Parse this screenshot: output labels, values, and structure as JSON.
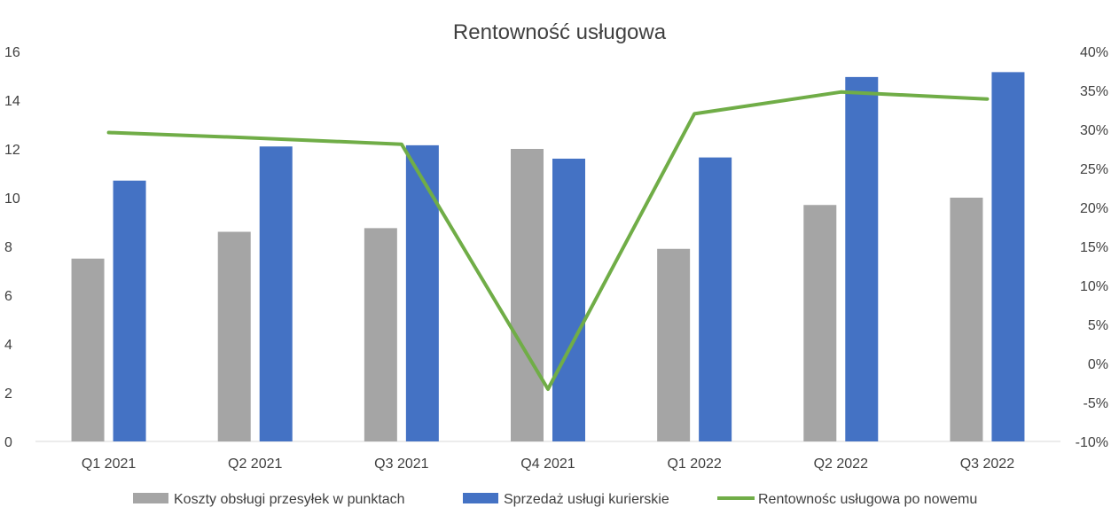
{
  "chart_data": {
    "type": "bar",
    "title": "Rentowność usługowa",
    "categories": [
      "Q1 2021",
      "Q2 2021",
      "Q3 2021",
      "Q4 2021",
      "Q1 2022",
      "Q2 2022",
      "Q3 2022"
    ],
    "y_left": {
      "min": 0,
      "max": 16,
      "ticks": [
        "0",
        "2",
        "4",
        "6",
        "8",
        "10",
        "12",
        "14",
        "16"
      ]
    },
    "y_right": {
      "min": -10,
      "max": 40,
      "ticks": [
        "-10%",
        "-5%",
        "0%",
        "5%",
        "10%",
        "15%",
        "20%",
        "25%",
        "30%",
        "35%",
        "40%"
      ]
    },
    "series": [
      {
        "name": "Koszty obsługi przesyłek w punktach",
        "type": "bar",
        "axis": "left",
        "color": "#A5A5A5",
        "values": [
          7.5,
          8.6,
          8.75,
          12.0,
          7.9,
          9.7,
          10.0
        ]
      },
      {
        "name": "Sprzedaż usługi kurierskie",
        "type": "bar",
        "axis": "left",
        "color": "#4472C4",
        "values": [
          10.7,
          12.1,
          12.15,
          11.6,
          11.65,
          14.95,
          15.15
        ]
      },
      {
        "name": "Rentownośc usługowa po nowemu",
        "type": "line",
        "axis": "right",
        "color": "#70AD47",
        "values": [
          29.6,
          28.9,
          28.1,
          -3.3,
          32.0,
          34.8,
          33.9
        ]
      }
    ],
    "grid": false,
    "legend_position": "bottom"
  }
}
